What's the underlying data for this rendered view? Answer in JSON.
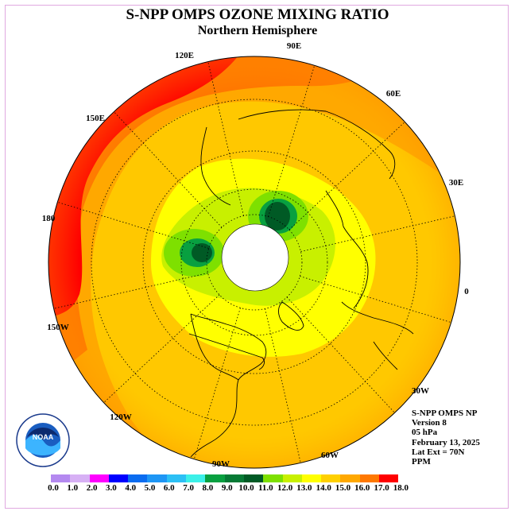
{
  "title": "S-NPP OMPS OZONE MIXING RATIO",
  "subtitle": "Northern Hemisphere",
  "longitude_labels": [
    "90E",
    "60E",
    "30E",
    "0",
    "30W",
    "60W",
    "90W",
    "120W",
    "150W",
    "180",
    "150E",
    "120E"
  ],
  "info": {
    "instrument": "S-NPP OMPS NP",
    "version": "Version 8",
    "level": "05 hPa",
    "date": "February 13, 2025",
    "lat_ext": "Lat Ext = 70N",
    "units": "PPM"
  },
  "colorbar": {
    "ticks": [
      "0.0",
      "1.0",
      "2.0",
      "3.0",
      "4.0",
      "5.0",
      "6.0",
      "7.0",
      "8.0",
      "9.0",
      "10.0",
      "11.0",
      "12.0",
      "13.0",
      "14.0",
      "15.0",
      "16.0",
      "17.0",
      "18.0"
    ],
    "colors": [
      "#b489f0",
      "#d7b0f5",
      "#ff00ff",
      "#0000ff",
      "#0a6cf0",
      "#1e96f5",
      "#2cc0f5",
      "#3cf0e8",
      "#08a040",
      "#067a35",
      "#005a25",
      "#7ee000",
      "#c8f000",
      "#ffff00",
      "#ffd000",
      "#ffa800",
      "#ff7800",
      "#ff0000",
      "#8c4a32"
    ]
  },
  "logo_text": "NOAA"
}
